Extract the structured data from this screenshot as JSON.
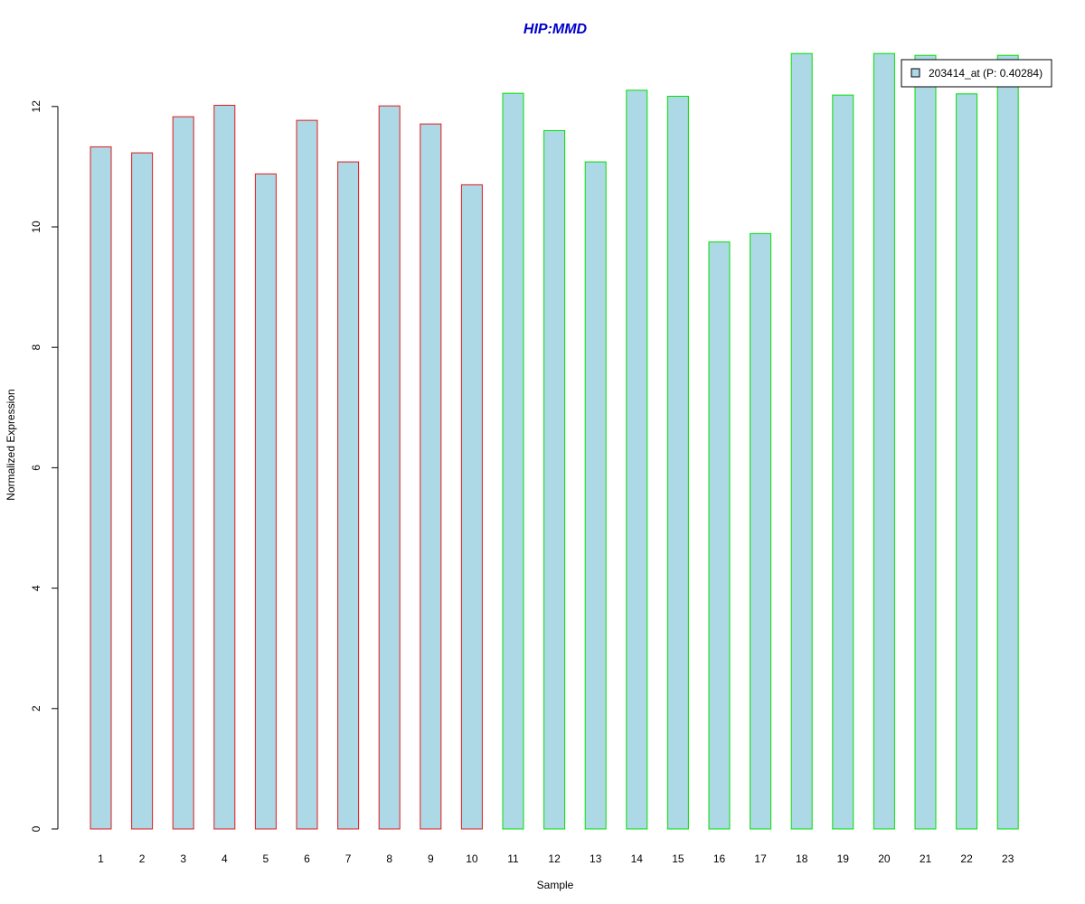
{
  "chart_data": {
    "type": "bar",
    "title": "HIP:MMD",
    "xlabel": "Sample",
    "ylabel": "Normalized Expression",
    "categories": [
      "1",
      "2",
      "3",
      "4",
      "5",
      "6",
      "7",
      "8",
      "9",
      "10",
      "11",
      "12",
      "13",
      "14",
      "15",
      "16",
      "17",
      "18",
      "19",
      "20",
      "21",
      "22",
      "23"
    ],
    "values": [
      11.33,
      11.23,
      11.83,
      12.02,
      10.88,
      11.77,
      11.08,
      12.01,
      11.71,
      10.7,
      12.22,
      11.6,
      11.08,
      12.27,
      12.17,
      9.75,
      9.89,
      12.88,
      12.19,
      12.88,
      12.85,
      12.21,
      12.85
    ],
    "group_of_bar": [
      0,
      0,
      0,
      0,
      0,
      0,
      0,
      0,
      0,
      0,
      1,
      1,
      1,
      1,
      1,
      1,
      1,
      1,
      1,
      1,
      1,
      1,
      1
    ],
    "group_border_colors": [
      "#e31a1c",
      "#00e000"
    ],
    "bar_fill_color": "#add8e6",
    "title_color": "#0000cd",
    "ylim": [
      0,
      12.9
    ],
    "yticks": [
      0,
      2,
      4,
      6,
      8,
      10,
      12
    ],
    "grid": false,
    "legend": {
      "position": "top-right",
      "entries": [
        {
          "label": "203414_at (P: 0.40284)",
          "fill": "#add8e6"
        }
      ]
    }
  }
}
